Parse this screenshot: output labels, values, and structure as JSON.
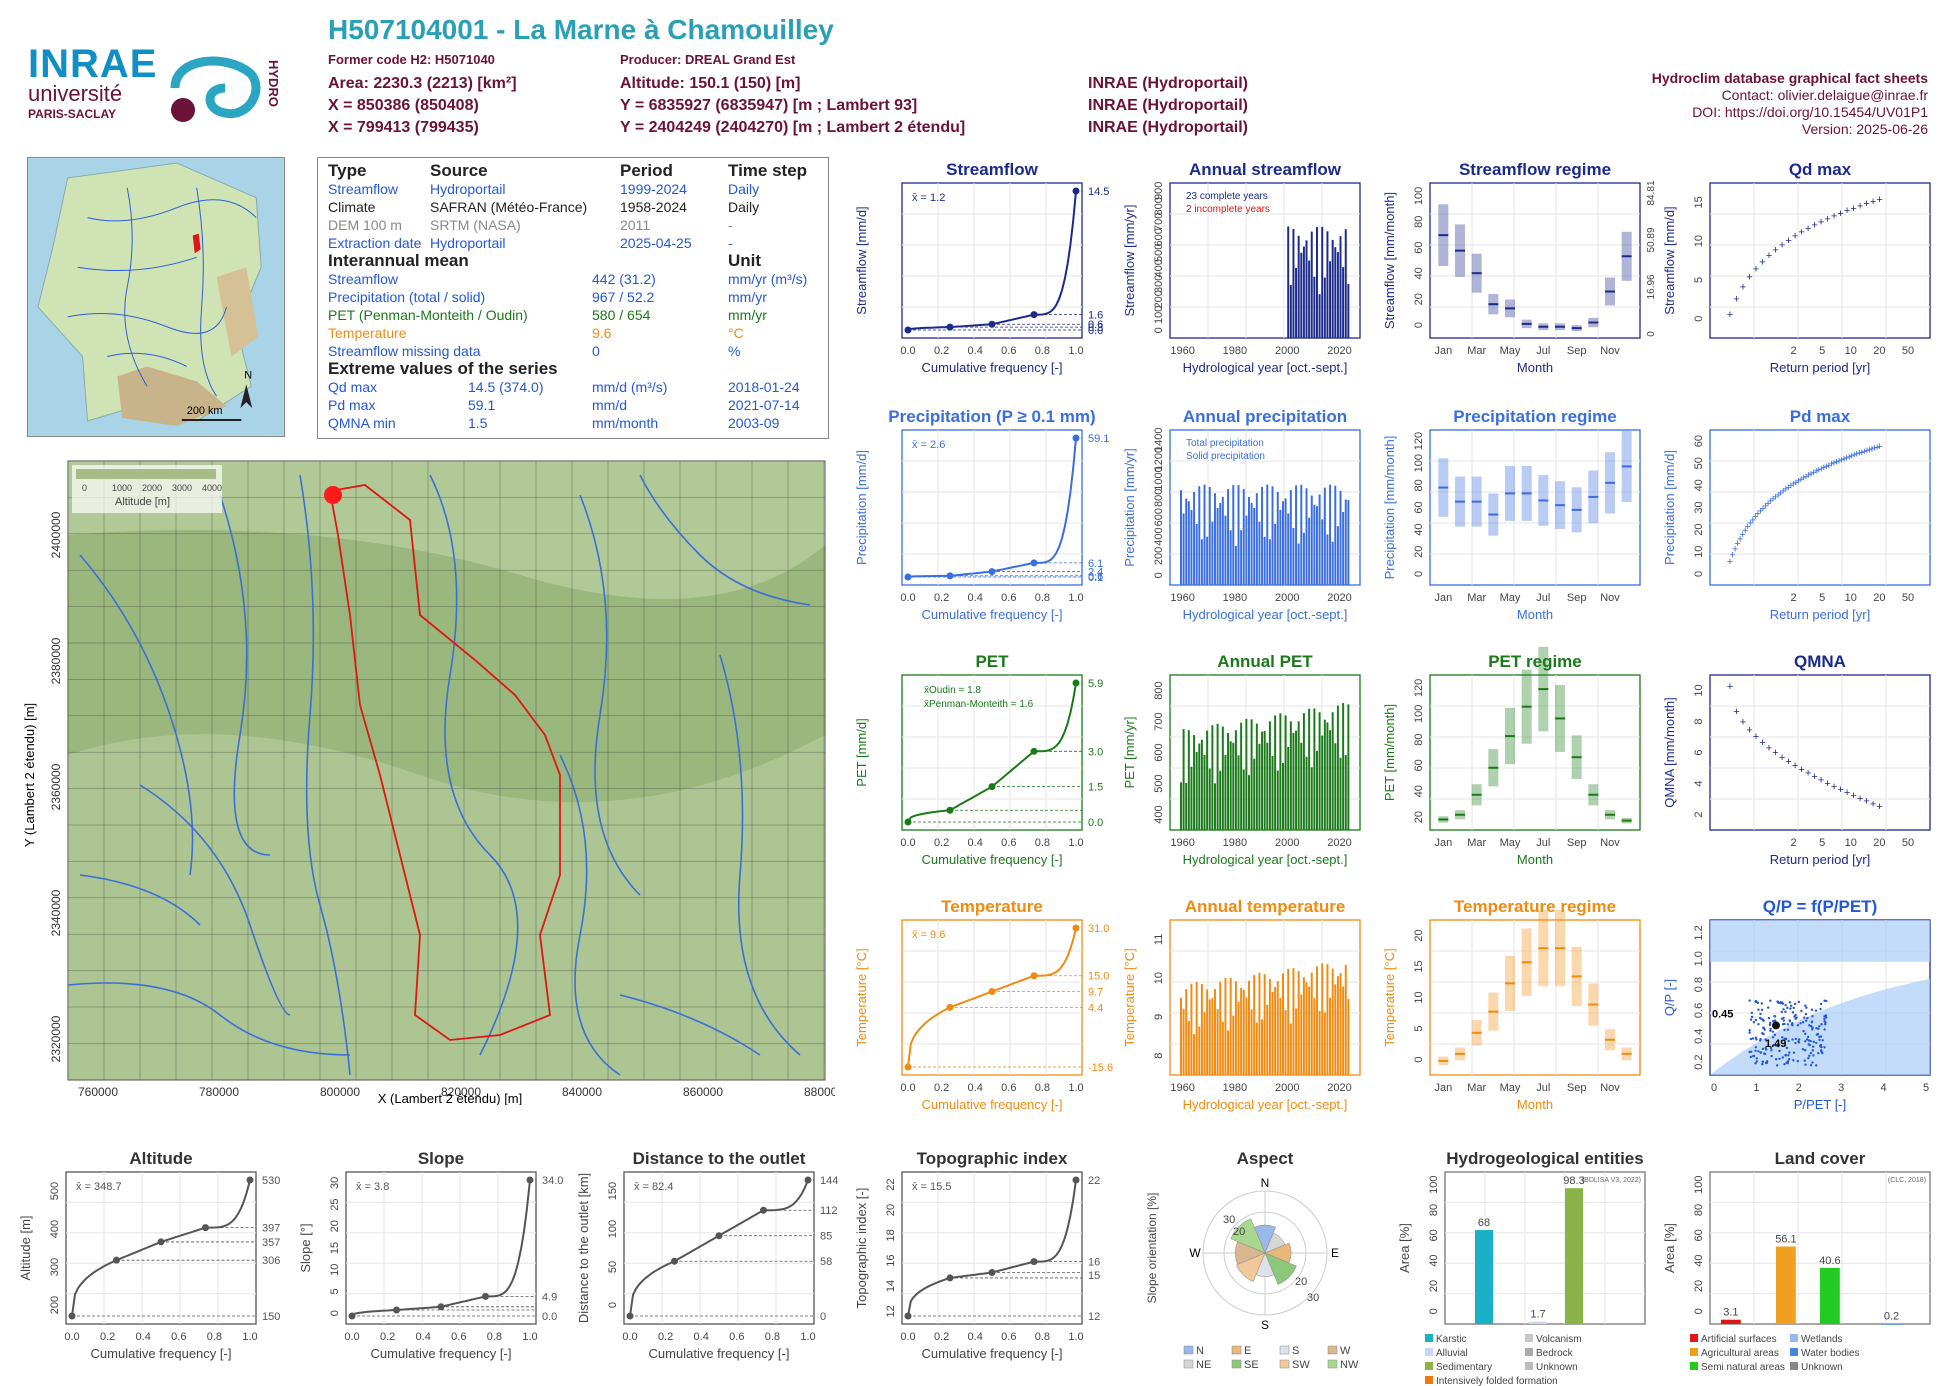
{
  "header": {
    "title": "H507104001 - La Marne à Chamouilley",
    "former_code": "Former code H2: H5071040",
    "producer": "Producer: DREAL Grand Est",
    "area": "Area: 2230.3 (2213) [km²]",
    "altitude": "Altitude: 150.1 (150) [m]",
    "x_l93": "X = 850386 (850408)",
    "y_l93": "Y = 6835927 (6835947) [m ; Lambert 93]",
    "x_l2": "X = 799413 (799435)",
    "y_l2": "Y = 2404249 (2404270) [m ; Lambert 2 étendu]",
    "src1": "INRAE (Hydroportail)",
    "src2": "INRAE (Hydroportail)",
    "src3": "INRAE (Hydroportail)"
  },
  "logos": {
    "inrae": "INRAE",
    "universite": "université",
    "paris_saclay": "PARIS-SACLAY",
    "hydro": "HYDRO"
  },
  "meta": {
    "db": "Hydroclim database graphical fact sheets",
    "contact": "Contact: olivier.delaigue@inrae.fr",
    "doi": "DOI: https://doi.org/10.15454/UV01P1",
    "version": "Version: 2025-06-26"
  },
  "info": {
    "headers": [
      "Type",
      "Source",
      "Period",
      "Time step"
    ],
    "rows": [
      [
        "Streamflow",
        "Hydroportail",
        "1999-2024",
        "Daily"
      ],
      [
        "Climate",
        "SAFRAN (Météo-France)",
        "1958-2024",
        "Daily"
      ],
      [
        "DEM 100 m",
        "SRTM (NASA)",
        "2011",
        "-"
      ],
      [
        "Extraction date",
        "Hydroportail",
        "2025-04-25",
        "-"
      ]
    ],
    "interannual_title": "Interannual mean",
    "unit_title": "Unit",
    "means": [
      [
        "Streamflow",
        "442 (31.2)",
        "mm/yr (m³/s)"
      ],
      [
        "Precipitation (total / solid)",
        "967 / 52.2",
        "mm/yr"
      ],
      [
        "PET (Penman-Monteith / Oudin)",
        "580 / 654",
        "mm/yr"
      ],
      [
        "Temperature",
        "9.6",
        "°C"
      ],
      [
        "Streamflow missing data",
        "0",
        "%"
      ]
    ],
    "extreme_title": "Extreme values of the series",
    "extremes": [
      [
        "Qd max",
        "14.5 (374.0)",
        "mm/d (m³/s)",
        "2018-01-24"
      ],
      [
        "Pd max",
        "59.1",
        "mm/d",
        "2021-07-14"
      ],
      [
        "QMNA min",
        "1.5",
        "mm/month",
        "2003-09"
      ]
    ]
  },
  "map": {
    "scale": "200 km",
    "north": "N",
    "legend_title": "Altitude [m]",
    "legend_ticks": [
      "0",
      "1000",
      "2000",
      "3000",
      "4000"
    ],
    "xlabel": "X (Lambert 2 étendu) [m]",
    "ylabel": "Y (Lambert 2 étendu) [m]",
    "xticks": [
      "760000",
      "780000",
      "800000",
      "820000",
      "840000",
      "860000",
      "880000"
    ],
    "yticks": [
      "2400000",
      "2380000",
      "2360000",
      "2340000",
      "2320000"
    ]
  },
  "chart_data": [
    {
      "id": "streamflow",
      "type": "line",
      "title": "Streamflow",
      "xlabel": "Cumulative frequency [-]",
      "ylabel": "Streamflow [mm/d]",
      "mean_label": "x̄ = 1.2",
      "x": [
        0,
        0.25,
        0.5,
        0.75,
        1
      ],
      "y": [
        0.0,
        0.3,
        0.6,
        1.6,
        14.5
      ],
      "right_ticks": [
        "14.5",
        "1.6",
        "0.6",
        "0.3",
        "0.0"
      ],
      "color": "#1c2a8c"
    },
    {
      "id": "annual_streamflow",
      "type": "bar",
      "title": "Annual streamflow",
      "xlabel": "Hydrological year [oct.-sept.]",
      "ylabel": "Streamflow [mm/yr]",
      "legend": [
        "23 complete years",
        "2 incomplete years"
      ],
      "xticks": [
        "1960",
        "1980",
        "2000",
        "2020"
      ],
      "yticks": [
        "0",
        "100",
        "200",
        "300",
        "400",
        "500",
        "600",
        "700",
        "800",
        "900"
      ],
      "color": "#1c2a8c"
    },
    {
      "id": "streamflow_regime",
      "type": "bar",
      "title": "Streamflow regime",
      "xlabel": "Month",
      "ylabel": "Streamflow [mm/month]",
      "months": [
        "Jan",
        "Mar",
        "May",
        "Jul",
        "Sep",
        "Nov"
      ],
      "values": [
        73,
        62,
        46,
        24,
        21,
        10,
        8,
        8,
        7,
        11,
        33,
        58
      ],
      "yticks": [
        "0",
        "20",
        "40",
        "60",
        "80",
        "100"
      ],
      "right_ticks": [
        "84.81",
        "50.89",
        "16.96",
        "0"
      ],
      "color": "#1c2a8c"
    },
    {
      "id": "qd_max",
      "type": "scatter",
      "title": "Qd max",
      "xlabel": "Return period [yr]",
      "ylabel": "Streamflow [mm/d]",
      "xticks": [
        "2",
        "5",
        "10",
        "20",
        "50"
      ],
      "yticks": [
        "0",
        "5",
        "10",
        "15"
      ],
      "color": "#1c2a8c"
    },
    {
      "id": "precipitation",
      "type": "line",
      "title": "Precipitation (P ≥ 0.1 mm)",
      "xlabel": "Cumulative frequency [-]",
      "ylabel": "Precipitation [mm/d]",
      "mean_label": "x̄ = 2.6",
      "x": [
        0,
        0.25,
        0.5,
        0.75,
        1
      ],
      "y": [
        0.1,
        0.6,
        2.4,
        6.1,
        59.1
      ],
      "right_ticks": [
        "59.1",
        "6.1",
        "2.4",
        "0.6",
        "0.1"
      ],
      "color": "#3a6ee0"
    },
    {
      "id": "annual_precipitation",
      "type": "bar",
      "title": "Annual precipitation",
      "xlabel": "Hydrological year [oct.-sept.]",
      "ylabel": "Precipitation [mm/yr]",
      "legend": [
        "Total precipitation",
        "Solid precipitation"
      ],
      "xticks": [
        "1960",
        "1980",
        "2000",
        "2020"
      ],
      "yticks": [
        "0",
        "200",
        "400",
        "600",
        "800",
        "1000",
        "1200",
        "1400"
      ],
      "color": "#3a6ee0"
    },
    {
      "id": "precipitation_regime",
      "type": "bar",
      "title": "Precipitation regime",
      "xlabel": "Month",
      "ylabel": "Precipitation [mm/month]",
      "months": [
        "Jan",
        "Mar",
        "May",
        "Jul",
        "Sep",
        "Nov"
      ],
      "values": [
        83,
        71,
        71,
        60,
        78,
        78,
        72,
        68,
        64,
        75,
        87,
        101
      ],
      "yticks": [
        "0",
        "20",
        "40",
        "60",
        "80",
        "100",
        "120"
      ],
      "color": "#3a6ee0"
    },
    {
      "id": "pd_max",
      "type": "scatter",
      "title": "Pd max",
      "xlabel": "Return period [yr]",
      "ylabel": "Precipitation [mm/d]",
      "xticks": [
        "2",
        "5",
        "10",
        "20",
        "50"
      ],
      "yticks": [
        "0",
        "10",
        "20",
        "30",
        "40",
        "50",
        "60"
      ],
      "color": "#3a6ee0"
    },
    {
      "id": "pet",
      "type": "line",
      "title": "PET",
      "xlabel": "Cumulative frequency [-]",
      "ylabel": "PET [mm/d]",
      "legend": [
        "x̄Oudin = 1.8",
        "x̄Penman-Monteith = 1.6"
      ],
      "x": [
        0,
        0.25,
        0.5,
        0.75,
        1
      ],
      "y": [
        0.0,
        0.5,
        1.5,
        3.0,
        5.9
      ],
      "right_ticks": [
        "5.9",
        "3.0",
        "1.5",
        "0.0"
      ],
      "color": "#1a7a1a"
    },
    {
      "id": "annual_pet",
      "type": "bar",
      "title": "Annual PET",
      "xlabel": "Hydrological year [oct.-sept.]",
      "ylabel": "PET [mm/yr]",
      "xticks": [
        "1960",
        "1980",
        "2000",
        "2020"
      ],
      "yticks": [
        "400",
        "500",
        "600",
        "700",
        "800"
      ],
      "color": "#1a7a1a"
    },
    {
      "id": "pet_regime",
      "type": "bar",
      "title": "PET regime",
      "xlabel": "Month",
      "ylabel": "PET [mm/month]",
      "months": [
        "Jan",
        "Mar",
        "May",
        "Jul",
        "Sep",
        "Nov"
      ],
      "values": [
        9,
        13,
        30,
        53,
        80,
        105,
        120,
        95,
        62,
        30,
        13,
        8
      ],
      "yticks": [
        "20",
        "40",
        "60",
        "80",
        "100",
        "120"
      ],
      "color": "#1a7a1a"
    },
    {
      "id": "qmna",
      "type": "scatter",
      "title": "QMNA",
      "xlabel": "Return period [yr]",
      "ylabel": "QMNA [mm/month]",
      "xticks": [
        "2",
        "5",
        "10",
        "20",
        "50"
      ],
      "yticks": [
        "2",
        "4",
        "6",
        "8",
        "10"
      ],
      "color": "#1c2a8c"
    },
    {
      "id": "temperature",
      "type": "line",
      "title": "Temperature",
      "xlabel": "Cumulative frequency [-]",
      "ylabel": "Temperature [°C]",
      "mean_label": "x̄ = 9.6",
      "x": [
        0,
        0.25,
        0.5,
        0.75,
        1
      ],
      "y": [
        -15.6,
        4.4,
        9.7,
        15.0,
        31.0
      ],
      "right_ticks": [
        "31.0",
        "15.0",
        "9.7",
        "4.4",
        "-15.6"
      ],
      "color": "#f08b12"
    },
    {
      "id": "annual_temperature",
      "type": "bar",
      "title": "Annual temperature",
      "xlabel": "Hydrological year [oct.-sept.]",
      "ylabel": "Temperature [°C]",
      "xticks": [
        "1960",
        "1980",
        "2000",
        "2020"
      ],
      "yticks": [
        "8",
        "9",
        "10",
        "11"
      ],
      "color": "#f08b12"
    },
    {
      "id": "temperature_regime",
      "type": "bar",
      "title": "Temperature regime",
      "xlabel": "Month",
      "ylabel": "Temperature [°C]",
      "months": [
        "Jan",
        "Mar",
        "May",
        "Jul",
        "Sep",
        "Nov"
      ],
      "values": [
        2,
        3,
        6,
        9,
        13,
        16,
        18,
        18,
        14,
        10,
        5,
        3
      ],
      "yticks": [
        "0",
        "5",
        "10",
        "15",
        "20"
      ],
      "color": "#f08b12"
    },
    {
      "id": "qp_budyko",
      "type": "scatter",
      "title": "Q/P = f(P/PET)",
      "xlabel": "P/PET [-]",
      "ylabel": "Q/P [-]",
      "annotations": [
        "0.45",
        "1.49"
      ],
      "xticks": [
        "0",
        "1",
        "2",
        "3",
        "4",
        "5"
      ],
      "yticks": [
        "0.2",
        "0.4",
        "0.6",
        "0.8",
        "1.0",
        "1.2"
      ],
      "color": "#2358d8"
    },
    {
      "id": "altitude",
      "type": "line",
      "title": "Altitude",
      "xlabel": "Cumulative frequency [-]",
      "ylabel": "Altitude [m]",
      "mean_label": "x̄ = 348.7",
      "x": [
        0,
        0.25,
        0.5,
        0.75,
        1
      ],
      "y": [
        150,
        306,
        357,
        397,
        530
      ],
      "right_ticks": [
        "530",
        "397",
        "357",
        "306",
        "150"
      ],
      "yticks": [
        "200",
        "300",
        "400",
        "500"
      ],
      "color": "#555"
    },
    {
      "id": "slope",
      "type": "line",
      "title": "Slope",
      "xlabel": "Cumulative frequency [-]",
      "ylabel": "Slope [°]",
      "mean_label": "x̄ = 3.8",
      "x": [
        0,
        0.25,
        0.5,
        0.75,
        1
      ],
      "y": [
        0.0,
        1.5,
        2.3,
        4.9,
        34.0
      ],
      "right_ticks": [
        "34.0",
        "4.9",
        "0.0"
      ],
      "yticks": [
        "0",
        "5",
        "10",
        "15",
        "20",
        "25",
        "30"
      ],
      "color": "#555"
    },
    {
      "id": "distance",
      "type": "line",
      "title": "Distance to the outlet",
      "xlabel": "Cumulative frequency [-]",
      "ylabel": "Distance to the outlet [km]",
      "mean_label": "x̄ = 82.4",
      "x": [
        0,
        0.25,
        0.5,
        0.75,
        1
      ],
      "y": [
        0,
        58,
        85,
        112,
        144
      ],
      "right_ticks": [
        "144",
        "112",
        "85",
        "58",
        "0"
      ],
      "yticks": [
        "0",
        "50",
        "100",
        "150"
      ],
      "color": "#555"
    },
    {
      "id": "topographic_index",
      "type": "line",
      "title": "Topographic index",
      "xlabel": "Cumulative frequency [-]",
      "ylabel": "Topographic index [-]",
      "mean_label": "x̄ = 15.5",
      "x": [
        0,
        0.25,
        0.5,
        0.75,
        1
      ],
      "y": [
        12,
        14.8,
        15.2,
        16,
        22
      ],
      "right_ticks": [
        "22",
        "16",
        "15",
        "12"
      ],
      "yticks": [
        "12",
        "14",
        "16",
        "18",
        "20",
        "22"
      ],
      "color": "#555"
    },
    {
      "id": "aspect",
      "type": "pie",
      "title": "Aspect",
      "ylabel": "Slope orientation [%]",
      "directions": [
        "N",
        "E",
        "S",
        "W"
      ],
      "ring_ticks": [
        "30",
        "20",
        "20",
        "30"
      ],
      "legend": [
        "N",
        "E",
        "S",
        "W",
        "NE",
        "SE",
        "SW",
        "NW"
      ]
    },
    {
      "id": "hydrogeology",
      "type": "bar",
      "title": "Hydrogeological entities",
      "ylabel": "Area [%]",
      "source": "(BDLISA V3, 2022)",
      "values": [
        68,
        1.7,
        98.3
      ],
      "value_labels": [
        "68",
        "1.7",
        "98.3"
      ],
      "yticks": [
        "0",
        "20",
        "40",
        "60",
        "80",
        "100"
      ],
      "legend": [
        "Karstic",
        "Volcanism",
        "Alluvial",
        "Bedrock",
        "Sedimentary",
        "Unknown",
        "Intensively folded formation"
      ]
    },
    {
      "id": "land_cover",
      "type": "bar",
      "title": "Land cover",
      "ylabel": "Area [%]",
      "source": "(CLC, 2018)",
      "values": [
        3.1,
        56.1,
        40.6,
        0.2
      ],
      "value_labels": [
        "3.1",
        "56.1",
        "40.6",
        "0.2"
      ],
      "yticks": [
        "0",
        "20",
        "40",
        "60",
        "80",
        "100"
      ],
      "legend": [
        "Artificial surfaces",
        "Wetlands",
        "Agricultural areas",
        "Water bodies",
        "Semi natural areas",
        "Unknown"
      ]
    }
  ]
}
